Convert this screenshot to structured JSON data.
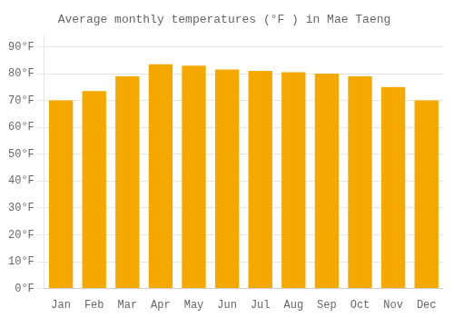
{
  "chart_data": {
    "type": "bar",
    "title": "Average monthly temperatures (°F ) in Mae Taeng",
    "categories": [
      "Jan",
      "Feb",
      "Mar",
      "Apr",
      "May",
      "Jun",
      "Jul",
      "Aug",
      "Sep",
      "Oct",
      "Nov",
      "Dec"
    ],
    "values": [
      70,
      73.5,
      79,
      83.5,
      83,
      81.5,
      81,
      80.5,
      80,
      79,
      75,
      70
    ],
    "color": "#F5A800",
    "ylim": [
      0,
      94
    ],
    "yticks": [
      {
        "value": 0,
        "label": "0°F"
      },
      {
        "value": 10,
        "label": "10°F"
      },
      {
        "value": 20,
        "label": "20°F"
      },
      {
        "value": 30,
        "label": "30°F"
      },
      {
        "value": 40,
        "label": "40°F"
      },
      {
        "value": 50,
        "label": "50°F"
      },
      {
        "value": 60,
        "label": "60°F"
      },
      {
        "value": 70,
        "label": "70°F"
      },
      {
        "value": 80,
        "label": "80°F"
      },
      {
        "value": 90,
        "label": "90°F"
      }
    ],
    "grid": true
  }
}
